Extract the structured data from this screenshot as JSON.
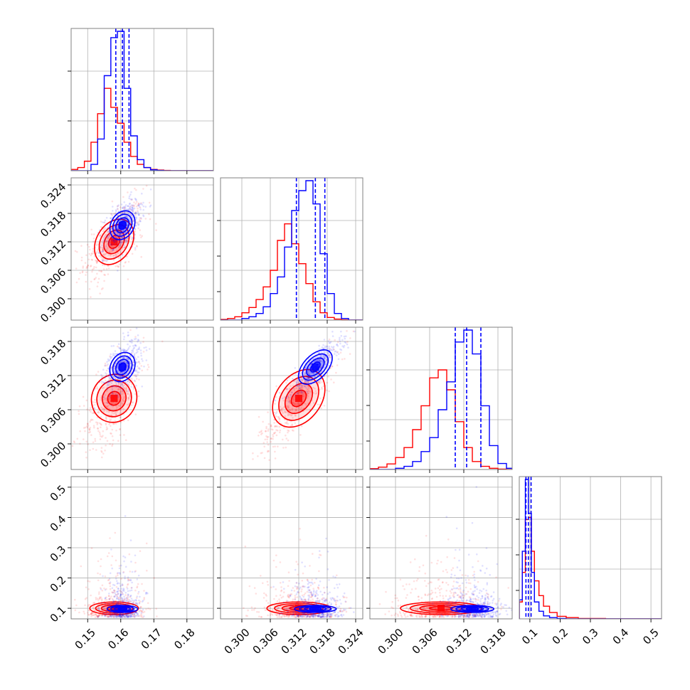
{
  "chart_data": {
    "type": "corner",
    "n_params": 4,
    "colors": {
      "a": "#ff0000",
      "b": "#0000ff"
    },
    "grid": true,
    "legend": "none",
    "series": [
      {
        "key": "a",
        "color": "#ff0000",
        "mean": [
          0.158,
          0.312,
          0.308,
          0.1
        ],
        "sd": [
          0.0035,
          0.0032,
          0.0034,
          0.022
        ],
        "corr": [
          [
            1,
            0.55,
            0.6,
            0.1
          ],
          [
            0.55,
            1,
            0.85,
            0.1
          ],
          [
            0.6,
            0.85,
            1,
            0.1
          ],
          [
            0.1,
            0.1,
            0.1,
            1
          ]
        ]
      },
      {
        "key": "b",
        "color": "#0000ff",
        "mean": [
          0.1605,
          0.3155,
          0.3135,
          0.098
        ],
        "sd": [
          0.0022,
          0.0021,
          0.0018,
          0.011
        ],
        "corr": [
          [
            1,
            0.55,
            0.5,
            0.1
          ],
          [
            0.55,
            1,
            0.85,
            0.1
          ],
          [
            0.5,
            0.85,
            1,
            0.1
          ],
          [
            0.1,
            0.1,
            0.1,
            1
          ]
        ]
      }
    ],
    "quantile_lines": {
      "color": "#0000ff",
      "values": [
        [
          0.1585,
          0.1605,
          0.1625
        ],
        [
          0.3115,
          0.3155,
          0.3175
        ],
        [
          0.3105,
          0.3125,
          0.315
        ],
        [
          0.087,
          0.095,
          0.104
        ]
      ]
    },
    "ranges": [
      [
        0.145,
        0.188
      ],
      [
        0.2955,
        0.3255
      ],
      [
        0.2955,
        0.3205
      ],
      [
        0.065,
        0.535
      ]
    ],
    "ticks": [
      [
        "0.15",
        "0.16",
        "0.17",
        "0.18"
      ],
      [
        "0.300",
        "0.306",
        "0.312",
        "0.318",
        "0.324"
      ],
      [
        "0.300",
        "0.306",
        "0.312",
        "0.318"
      ],
      [
        "0.1",
        "0.2",
        "0.3",
        "0.4",
        "0.5"
      ]
    ],
    "hist": [
      {
        "edges": [
          0.145,
          0.147,
          0.149,
          0.151,
          0.153,
          0.155,
          0.157,
          0.159,
          0.161,
          0.163,
          0.165,
          0.167,
          0.169,
          0.171,
          0.173,
          0.175,
          0.177,
          0.179,
          0.181,
          0.183,
          0.185,
          0.188
        ],
        "series": [
          {
            "key": "a",
            "values": [
              4,
              10,
              30,
              90,
              180,
              260,
              200,
              150,
              90,
              45,
              20,
              10,
              4,
              2,
              1,
              0,
              0,
              0,
              0,
              0,
              0
            ]
          },
          {
            "key": "b",
            "values": [
              0,
              0,
              0,
              20,
              100,
              300,
              420,
              440,
              260,
              110,
              35,
              10,
              3,
              1,
              0,
              0,
              0,
              0,
              0,
              0,
              0
            ]
          }
        ]
      },
      {
        "edges": [
          0.2955,
          0.297,
          0.2985,
          0.3,
          0.3015,
          0.303,
          0.3045,
          0.306,
          0.3075,
          0.309,
          0.3105,
          0.312,
          0.3135,
          0.315,
          0.3165,
          0.318,
          0.3195,
          0.321,
          0.3225,
          0.324,
          0.3255
        ],
        "series": [
          {
            "key": "a",
            "values": [
              2,
              5,
              10,
              22,
              38,
              62,
              100,
              150,
              240,
              290,
              230,
              170,
              110,
              55,
              22,
              8,
              3,
              1,
              0,
              0
            ]
          },
          {
            "key": "b",
            "values": [
              0,
              0,
              0,
              5,
              10,
              20,
              40,
              80,
              130,
              220,
              330,
              390,
              420,
              350,
              200,
              80,
              20,
              5,
              0,
              0
            ]
          }
        ]
      },
      {
        "edges": [
          0.2955,
          0.297,
          0.2985,
          0.3,
          0.3015,
          0.303,
          0.3045,
          0.306,
          0.3075,
          0.309,
          0.3105,
          0.312,
          0.3135,
          0.315,
          0.3165,
          0.318,
          0.3195,
          0.3205
        ],
        "series": [
          {
            "key": "a",
            "values": [
              2,
              6,
              14,
              30,
              55,
              100,
              160,
              230,
              250,
              200,
              120,
              55,
              20,
              8,
              3,
              1,
              0
            ]
          },
          {
            "key": "b",
            "values": [
              0,
              0,
              0,
              3,
              8,
              20,
              45,
              80,
              150,
              220,
              320,
              350,
              290,
              160,
              60,
              15,
              3
            ]
          }
        ]
      },
      {
        "edges": [
          0.065,
          0.075,
          0.085,
          0.095,
          0.105,
          0.115,
          0.13,
          0.145,
          0.165,
          0.19,
          0.22,
          0.26,
          0.3,
          0.35,
          0.4,
          0.45,
          0.5,
          0.535
        ],
        "series": [
          {
            "key": "a",
            "values": [
              40,
              110,
              235,
              240,
              160,
              90,
              55,
              30,
              15,
              6,
              3,
              1,
              1,
              0,
              0,
              0,
              0
            ]
          },
          {
            "key": "b",
            "values": [
              45,
              160,
              330,
              250,
              110,
              40,
              18,
              7,
              3,
              1,
              0,
              0,
              0,
              0,
              0,
              0,
              0
            ]
          }
        ]
      }
    ]
  }
}
